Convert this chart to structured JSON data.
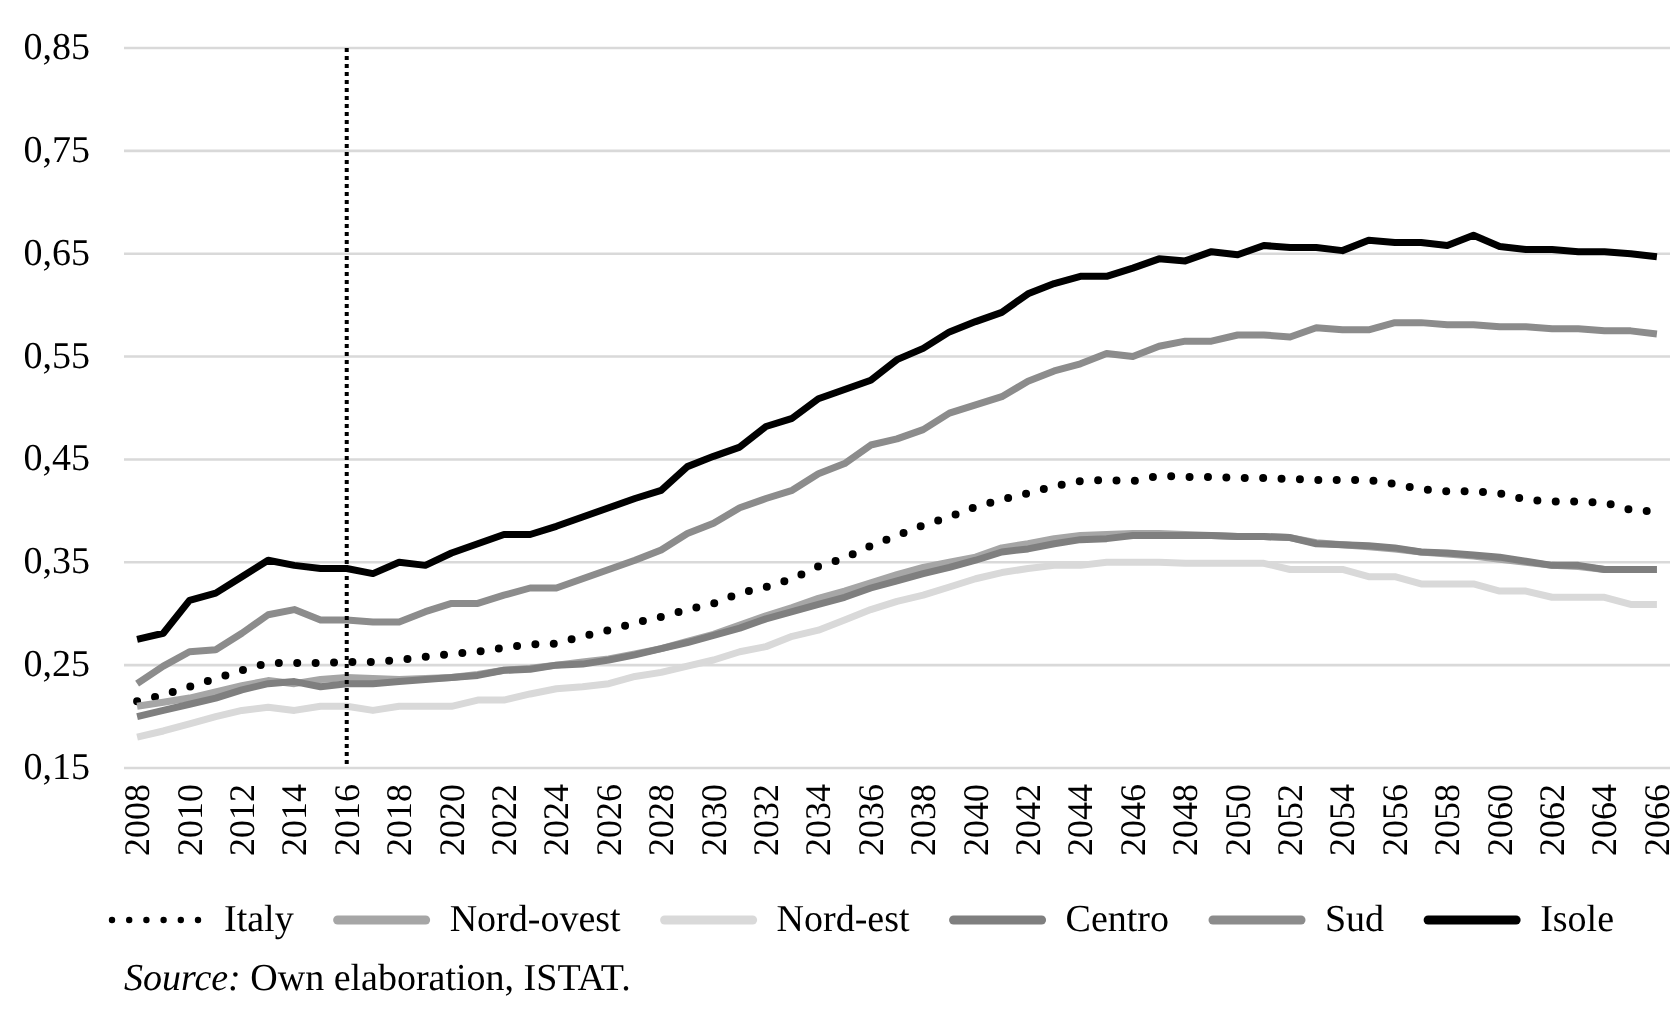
{
  "chart_data": {
    "type": "line",
    "x": [
      2008,
      2009,
      2010,
      2011,
      2012,
      2013,
      2014,
      2015,
      2016,
      2017,
      2018,
      2019,
      2020,
      2021,
      2022,
      2023,
      2024,
      2025,
      2026,
      2027,
      2028,
      2029,
      2030,
      2031,
      2032,
      2033,
      2034,
      2035,
      2036,
      2037,
      2038,
      2039,
      2040,
      2041,
      2042,
      2043,
      2044,
      2045,
      2046,
      2047,
      2048,
      2049,
      2050,
      2051,
      2052,
      2053,
      2054,
      2055,
      2056,
      2057,
      2058,
      2059,
      2060,
      2061,
      2062,
      2063,
      2064,
      2065,
      2066
    ],
    "xlim": [
      2007.5,
      2066.5
    ],
    "xticks": [
      2008,
      2010,
      2012,
      2014,
      2016,
      2018,
      2020,
      2022,
      2024,
      2026,
      2028,
      2030,
      2032,
      2034,
      2036,
      2038,
      2040,
      2042,
      2044,
      2046,
      2048,
      2050,
      2052,
      2054,
      2056,
      2058,
      2060,
      2062,
      2064,
      2066
    ],
    "ylim": [
      0.15,
      0.85
    ],
    "yticks": [
      {
        "value": 0.15,
        "label": "0,15"
      },
      {
        "value": 0.25,
        "label": "0,25"
      },
      {
        "value": 0.35,
        "label": "0,35"
      },
      {
        "value": 0.45,
        "label": "0,45"
      },
      {
        "value": 0.55,
        "label": "0,55"
      },
      {
        "value": 0.65,
        "label": "0,65"
      },
      {
        "value": 0.75,
        "label": "0,75"
      },
      {
        "value": 0.85,
        "label": "0,85"
      }
    ],
    "grid": "y",
    "legend": "bottom",
    "series": [
      {
        "name": "Italy",
        "color": "#000000",
        "line_style": "dotted",
        "values": [
          0.215,
          0.221,
          0.229,
          0.237,
          0.245,
          0.252,
          0.252,
          0.252,
          0.253,
          0.253,
          0.255,
          0.258,
          0.261,
          0.263,
          0.267,
          0.27,
          0.271,
          0.278,
          0.284,
          0.291,
          0.297,
          0.304,
          0.31,
          0.32,
          0.326,
          0.334,
          0.346,
          0.354,
          0.366,
          0.376,
          0.386,
          0.394,
          0.404,
          0.411,
          0.417,
          0.424,
          0.429,
          0.43,
          0.429,
          0.434,
          0.433,
          0.433,
          0.432,
          0.432,
          0.431,
          0.43,
          0.43,
          0.43,
          0.426,
          0.421,
          0.419,
          0.419,
          0.417,
          0.411,
          0.409,
          0.409,
          0.408,
          0.401,
          0.399
        ]
      },
      {
        "name": "Nord-ovest",
        "color": "#a6a6a6",
        "values": [
          0.21,
          0.214,
          0.218,
          0.224,
          0.23,
          0.235,
          0.232,
          0.236,
          0.238,
          0.237,
          0.236,
          0.237,
          0.238,
          0.241,
          0.245,
          0.247,
          0.25,
          0.253,
          0.256,
          0.261,
          0.266,
          0.273,
          0.28,
          0.289,
          0.298,
          0.306,
          0.315,
          0.322,
          0.33,
          0.338,
          0.345,
          0.35,
          0.355,
          0.364,
          0.368,
          0.373,
          0.376,
          0.377,
          0.378,
          0.378,
          0.377,
          0.376,
          0.375,
          0.375,
          0.374,
          0.369,
          0.367,
          0.365,
          0.363,
          0.36,
          0.358,
          0.356,
          0.353,
          0.35,
          0.347,
          0.346,
          0.343,
          0.343,
          0.343
        ]
      },
      {
        "name": "Nord-est",
        "color": "#d9d9d9",
        "values": [
          0.18,
          0.186,
          0.193,
          0.2,
          0.206,
          0.209,
          0.206,
          0.21,
          0.21,
          0.206,
          0.21,
          0.21,
          0.21,
          0.216,
          0.216,
          0.222,
          0.227,
          0.229,
          0.232,
          0.239,
          0.243,
          0.249,
          0.255,
          0.263,
          0.268,
          0.278,
          0.284,
          0.294,
          0.304,
          0.312,
          0.318,
          0.326,
          0.334,
          0.34,
          0.344,
          0.347,
          0.347,
          0.35,
          0.35,
          0.35,
          0.349,
          0.349,
          0.349,
          0.349,
          0.343,
          0.343,
          0.343,
          0.336,
          0.336,
          0.329,
          0.329,
          0.329,
          0.322,
          0.322,
          0.316,
          0.316,
          0.316,
          0.309,
          0.309
        ]
      },
      {
        "name": "Centro",
        "color": "#7f7f7f",
        "values": [
          0.2,
          0.206,
          0.212,
          0.218,
          0.226,
          0.232,
          0.234,
          0.229,
          0.232,
          0.232,
          0.234,
          0.236,
          0.238,
          0.24,
          0.245,
          0.246,
          0.25,
          0.251,
          0.255,
          0.26,
          0.266,
          0.272,
          0.279,
          0.286,
          0.295,
          0.302,
          0.309,
          0.316,
          0.325,
          0.332,
          0.339,
          0.345,
          0.352,
          0.36,
          0.363,
          0.368,
          0.372,
          0.373,
          0.376,
          0.376,
          0.376,
          0.376,
          0.375,
          0.375,
          0.374,
          0.368,
          0.367,
          0.366,
          0.364,
          0.36,
          0.359,
          0.357,
          0.355,
          0.351,
          0.347,
          0.347,
          0.343,
          0.343,
          0.343
        ]
      },
      {
        "name": "Sud",
        "color": "#8c8c8c",
        "values": [
          0.232,
          0.249,
          0.263,
          0.265,
          0.281,
          0.299,
          0.304,
          0.294,
          0.294,
          0.292,
          0.292,
          0.302,
          0.31,
          0.31,
          0.318,
          0.325,
          0.325,
          0.334,
          0.343,
          0.352,
          0.362,
          0.378,
          0.388,
          0.403,
          0.412,
          0.42,
          0.436,
          0.446,
          0.464,
          0.47,
          0.479,
          0.495,
          0.503,
          0.511,
          0.526,
          0.536,
          0.543,
          0.553,
          0.55,
          0.56,
          0.565,
          0.565,
          0.571,
          0.571,
          0.569,
          0.578,
          0.576,
          0.576,
          0.583,
          0.583,
          0.581,
          0.581,
          0.579,
          0.579,
          0.577,
          0.577,
          0.575,
          0.575,
          0.572
        ]
      },
      {
        "name": "Isole",
        "color": "#000000",
        "values": [
          0.275,
          0.281,
          0.313,
          0.32,
          0.336,
          0.352,
          0.347,
          0.344,
          0.344,
          0.339,
          0.35,
          0.347,
          0.359,
          0.368,
          0.377,
          0.377,
          0.385,
          0.394,
          0.403,
          0.412,
          0.42,
          0.443,
          0.453,
          0.462,
          0.482,
          0.49,
          0.509,
          0.518,
          0.527,
          0.547,
          0.558,
          0.574,
          0.584,
          0.593,
          0.611,
          0.621,
          0.628,
          0.628,
          0.636,
          0.645,
          0.643,
          0.652,
          0.649,
          0.658,
          0.656,
          0.656,
          0.653,
          0.663,
          0.661,
          0.661,
          0.658,
          0.668,
          0.657,
          0.654,
          0.654,
          0.652,
          0.652,
          0.65,
          0.647
        ]
      }
    ],
    "ref_lines": [
      {
        "axis": "x",
        "value": 2016,
        "color": "#000000",
        "line_style": "dotted"
      }
    ],
    "annotations": [
      "Source: Own elaboration, ISTAT."
    ]
  }
}
